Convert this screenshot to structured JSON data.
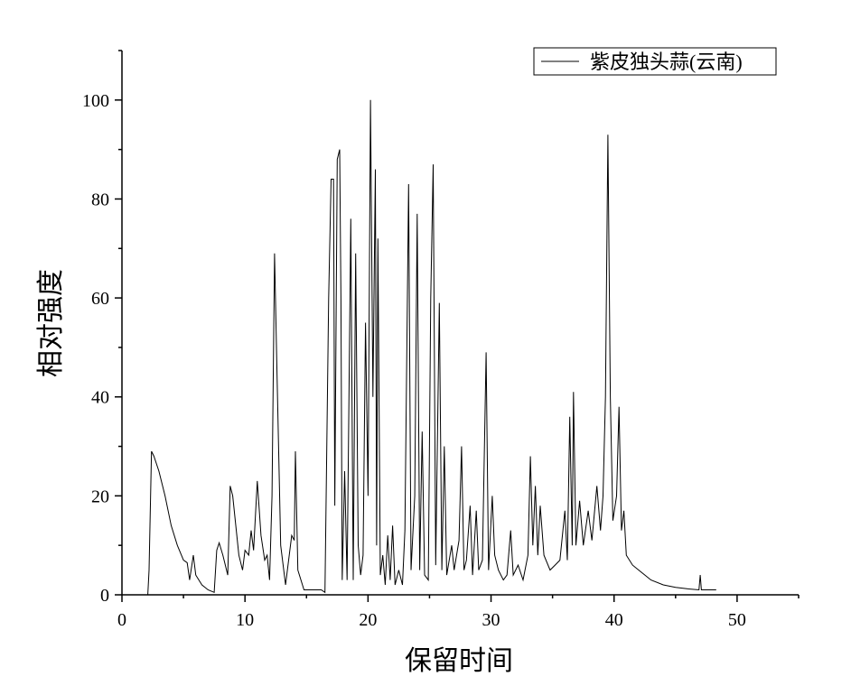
{
  "chart_data": {
    "type": "line",
    "xlabel": "保留时间",
    "ylabel": "相对强度",
    "xlim": [
      0,
      55
    ],
    "xticks": [
      0,
      10,
      20,
      30,
      40,
      50
    ],
    "ylim": [
      0,
      110
    ],
    "yticks": [
      0,
      20,
      40,
      60,
      80,
      100
    ],
    "legend": "top-right",
    "series": [
      {
        "name": "紫皮独头蒜(云南)",
        "color": "#000000",
        "x": [
          2.1,
          2.2,
          2.4,
          2.6,
          3,
          3.5,
          4,
          4.5,
          5,
          5.3,
          5.5,
          5.8,
          6,
          6.5,
          7,
          7.5,
          7.7,
          7.9,
          8.2,
          8.6,
          8.8,
          9,
          9.5,
          9.8,
          10,
          10.3,
          10.5,
          10.7,
          11,
          11.3,
          11.6,
          11.8,
          12,
          12.2,
          12.4,
          12.6,
          12.9,
          13.3,
          13.8,
          14,
          14.1,
          14.3,
          14.8,
          15.5,
          16.2,
          16.5,
          16.8,
          17,
          17.2,
          17.3,
          17.5,
          17.7,
          17.8,
          17.9,
          18.1,
          18.3,
          18.6,
          18.8,
          19,
          19.2,
          19.4,
          19.6,
          19.8,
          20,
          20.2,
          20.4,
          20.6,
          20.7,
          20.8,
          21,
          21.2,
          21.4,
          21.6,
          21.8,
          22,
          22.2,
          22.5,
          22.8,
          23,
          23.3,
          23.5,
          23.8,
          24,
          24.2,
          24.4,
          24.6,
          24.9,
          25.1,
          25.3,
          25.5,
          25.8,
          26,
          26.2,
          26.4,
          26.8,
          27,
          27.4,
          27.6,
          27.8,
          28,
          28.3,
          28.5,
          28.8,
          29,
          29.3,
          29.6,
          29.8,
          30.1,
          30.3,
          30.6,
          31,
          31.3,
          31.6,
          31.8,
          32.2,
          32.6,
          33,
          33.2,
          33.4,
          33.6,
          33.8,
          34,
          34.3,
          34.8,
          35.2,
          35.6,
          36,
          36.2,
          36.4,
          36.6,
          36.7,
          36.9,
          37.2,
          37.5,
          37.9,
          38.2,
          38.6,
          38.9,
          39.1,
          39.3,
          39.5,
          39.7,
          39.9,
          40.2,
          40.4,
          40.6,
          40.8,
          41,
          41.5,
          42,
          43,
          44,
          45,
          46,
          46.9,
          47,
          47.1,
          48,
          48.3
        ],
        "values": [
          0,
          5,
          29,
          28,
          25,
          20,
          14,
          10,
          7,
          6.5,
          3,
          8,
          4,
          2,
          1,
          0.5,
          9,
          10.5,
          8,
          4,
          22,
          20,
          8,
          5,
          9,
          8,
          13,
          9,
          23,
          12,
          7,
          8,
          3,
          20,
          69,
          45,
          10,
          2,
          12,
          11,
          29,
          5,
          1,
          1,
          1,
          0.5,
          60,
          84,
          84,
          18,
          88,
          90,
          60,
          3,
          25,
          3,
          76,
          3,
          69,
          10,
          4,
          8,
          55,
          20,
          100,
          40,
          86,
          10,
          72,
          4,
          8,
          2,
          12,
          3,
          14,
          2,
          5,
          2,
          13,
          83,
          5,
          20,
          77,
          5,
          33,
          4,
          3,
          60,
          87,
          6,
          59,
          5,
          30,
          4,
          10,
          5,
          11,
          30,
          5,
          7,
          18,
          4,
          17,
          5,
          7,
          49,
          5,
          20,
          8,
          5,
          3,
          4,
          13,
          4,
          6,
          3,
          8,
          28,
          10,
          22,
          8,
          18,
          8,
          5,
          6,
          7,
          17,
          7,
          36,
          10,
          41,
          10,
          19,
          10,
          17,
          11,
          22,
          13,
          20,
          40,
          93,
          40,
          15,
          20,
          38,
          13,
          17,
          8,
          6,
          5,
          3,
          2,
          1.5,
          1.2,
          1,
          4,
          1,
          1,
          1
        ]
      }
    ]
  }
}
